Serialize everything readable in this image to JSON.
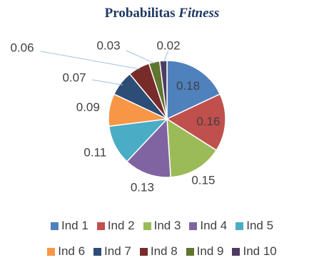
{
  "chart_data": {
    "type": "pie",
    "title": "Probabilitas",
    "title_italic": "Fitness",
    "categories": [
      "Ind 1",
      "Ind 2",
      "Ind 3",
      "Ind 4",
      "Ind 5",
      "Ind 6",
      "Ind 7",
      "Ind 8",
      "Ind 9",
      "Ind 10"
    ],
    "values": [
      0.18,
      0.16,
      0.15,
      0.13,
      0.11,
      0.09,
      0.07,
      0.06,
      0.03,
      0.02
    ],
    "labels": [
      "0.18",
      "0.16",
      "0.15",
      "0.13",
      "0.11",
      "0.09",
      "0.07",
      "0.06",
      "0.03",
      "0.02"
    ],
    "colors": [
      "#4f81bd",
      "#c0504d",
      "#9bbb59",
      "#8064a2",
      "#4bacc6",
      "#f79646",
      "#2c4d75",
      "#772c2a",
      "#5f7530",
      "#4d3b62"
    ],
    "legend_position": "bottom"
  }
}
